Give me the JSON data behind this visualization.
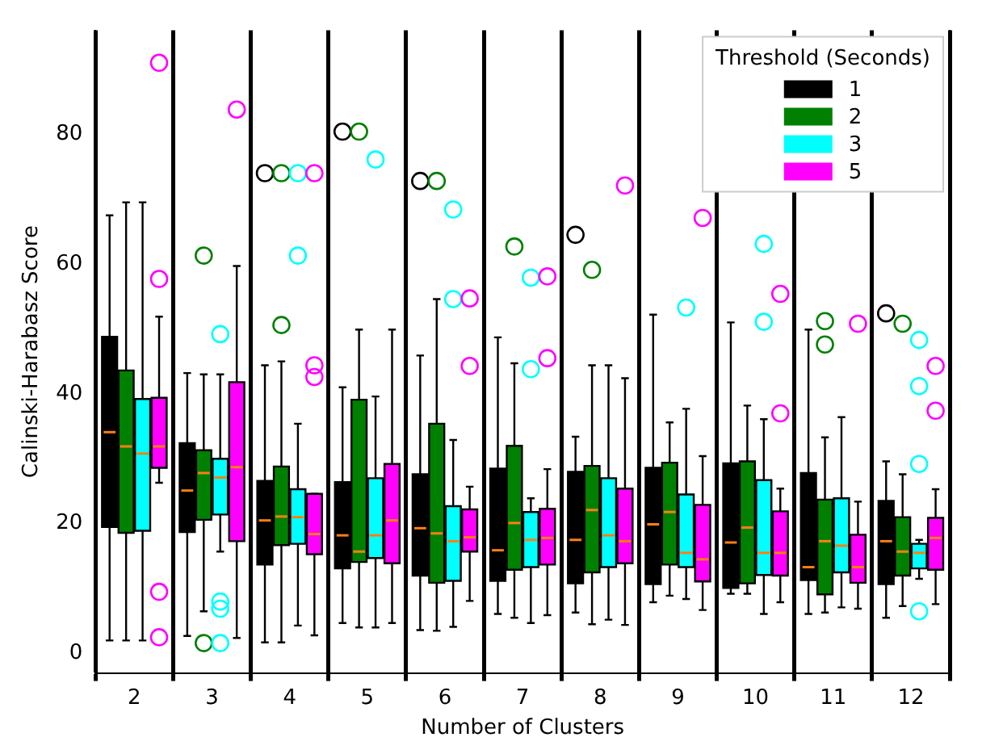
{
  "chart_data": {
    "type": "box",
    "xlabel": "Number of Clusters",
    "ylabel": "Calinski-Harabasz Score",
    "legend_title": "Threshold (Seconds)",
    "legend": "top right",
    "grid": "x",
    "categories": [
      "2",
      "3",
      "4",
      "5",
      "6",
      "7",
      "8",
      "9",
      "10",
      "11",
      "12"
    ],
    "ylim": [
      -3,
      96
    ],
    "yticks": [
      0,
      20,
      40,
      60,
      80
    ],
    "series": [
      {
        "name": "1",
        "color": "#000000",
        "boxes": [
          {
            "low": 2,
            "q1": 19.5,
            "median": 34.1,
            "q3": 48.8,
            "high": 67.5
          },
          {
            "low": 2.7,
            "q1": 18.7,
            "median": 25.1,
            "q3": 32.4,
            "high": 43.2
          },
          {
            "low": 1.7,
            "q1": 13.7,
            "median": 20.5,
            "q3": 26.6,
            "high": 44.4,
            "outliers": [
              74
            ]
          },
          {
            "low": 4.7,
            "q1": 13.1,
            "median": 18.2,
            "q3": 26.4,
            "high": 41,
            "outliers": [
              80.4
            ]
          },
          {
            "low": 3.6,
            "q1": 12,
            "median": 19.3,
            "q3": 27.6,
            "high": 45.9,
            "outliers": [
              72.8
            ]
          },
          {
            "low": 6.1,
            "q1": 11.2,
            "median": 15.9,
            "q3": 28.5,
            "high": 48.7
          },
          {
            "low": 6.3,
            "q1": 10.8,
            "median": 17.5,
            "q3": 28,
            "high": 33.4,
            "outliers": [
              64.5
            ]
          },
          {
            "low": 7.9,
            "q1": 10.7,
            "median": 19.9,
            "q3": 28.6,
            "high": 52.2
          },
          {
            "low": 9.2,
            "q1": 10.1,
            "median": 17.1,
            "q3": 29.3,
            "high": 51
          },
          {
            "low": 6.1,
            "q1": 11.3,
            "median": 13.3,
            "q3": 27.8,
            "high": 49.9
          },
          {
            "low": 5.5,
            "q1": 10.7,
            "median": 17.3,
            "q3": 23.5,
            "high": 29.6,
            "outliers": [
              52.4
            ]
          }
        ]
      },
      {
        "name": "2",
        "color": "#008000",
        "boxes": [
          {
            "low": 2,
            "q1": 18.6,
            "median": 31.9,
            "q3": 43.6,
            "high": 69.5
          },
          {
            "low": 6.5,
            "q1": 20.6,
            "median": 27.8,
            "q3": 31.3,
            "high": 43,
            "outliers": [
              61.3,
              1.6
            ]
          },
          {
            "low": 1.7,
            "q1": 16.7,
            "median": 21.1,
            "q3": 28.8,
            "high": 45,
            "outliers": [
              74,
              50.6
            ]
          },
          {
            "low": 4,
            "q1": 14.1,
            "median": 15.7,
            "q3": 39.1,
            "high": 49.9,
            "outliers": [
              80.4
            ]
          },
          {
            "low": 3.5,
            "q1": 10.9,
            "median": 18.5,
            "q3": 35.4,
            "high": 54.6,
            "outliers": [
              72.8
            ]
          },
          {
            "low": 5.5,
            "q1": 12.9,
            "median": 20.1,
            "q3": 32,
            "high": 44.7,
            "outliers": [
              62.7
            ]
          },
          {
            "low": 4.5,
            "q1": 12.5,
            "median": 22.1,
            "q3": 28.9,
            "high": 44.4,
            "outliers": [
              59.1
            ]
          },
          {
            "low": 8.9,
            "q1": 13.7,
            "median": 21.8,
            "q3": 29.4,
            "high": 35.6
          },
          {
            "low": 9.2,
            "q1": 10.8,
            "median": 19.4,
            "q3": 29.6,
            "high": 38.2
          },
          {
            "low": 6.3,
            "q1": 9.1,
            "median": 17.3,
            "q3": 23.7,
            "high": 33.3,
            "outliers": [
              51.2,
              47.6
            ]
          },
          {
            "low": 7.3,
            "q1": 12,
            "median": 15.7,
            "q3": 21,
            "high": 27.6,
            "outliers": [
              50.8
            ]
          }
        ]
      },
      {
        "name": "3",
        "color": "#00ffff",
        "boxes": [
          {
            "low": 2,
            "q1": 18.9,
            "median": 30.8,
            "q3": 39.2,
            "high": 69.5
          },
          {
            "low": 15.7,
            "q1": 21.4,
            "median": 27.1,
            "q3": 30,
            "high": 43,
            "outliers": [
              49.2,
              8,
              6.9,
              1.6
            ]
          },
          {
            "low": 4.3,
            "q1": 16.9,
            "median": 21,
            "q3": 25.3,
            "high": 35.4,
            "outliers": [
              74,
              61.3
            ]
          },
          {
            "low": 4,
            "q1": 14.7,
            "median": 18.2,
            "q3": 27,
            "high": 39.6,
            "outliers": [
              76.1
            ]
          },
          {
            "low": 4.1,
            "q1": 11.2,
            "median": 17.3,
            "q3": 22.7,
            "high": 32.9,
            "outliers": [
              68.4,
              54.6
            ]
          },
          {
            "low": 4.7,
            "q1": 13.3,
            "median": 17.5,
            "q3": 21.8,
            "high": 23.9,
            "outliers": [
              57.9,
              43.8
            ]
          },
          {
            "low": 5.2,
            "q1": 13.3,
            "median": 18.2,
            "q3": 27,
            "high": 44.4
          },
          {
            "low": 8.4,
            "q1": 13.3,
            "median": 15.5,
            "q3": 24.5,
            "high": 37.7,
            "outliers": [
              53.3
            ]
          },
          {
            "low": 6.1,
            "q1": 12.1,
            "median": 15.5,
            "q3": 26.7,
            "high": 36.1,
            "outliers": [
              63.1,
              51.1
            ]
          },
          {
            "low": 7.1,
            "q1": 12.5,
            "median": 16.6,
            "q3": 23.9,
            "high": 36.4
          },
          {
            "low": 11.5,
            "q1": 13.1,
            "median": 15.5,
            "q3": 16.9,
            "high": 17.5,
            "outliers": [
              48.3,
              41.2,
              29.2,
              6.5
            ]
          }
        ]
      },
      {
        "name": "5",
        "color": "#ff00ff",
        "boxes": [
          {
            "low": 26.3,
            "q1": 28.6,
            "median": 31.9,
            "q3": 39.4,
            "high": 51.9,
            "outliers": [
              91,
              57.7,
              9.5,
              2.5
            ]
          },
          {
            "low": 2.4,
            "q1": 17.3,
            "median": 28.7,
            "q3": 41.8,
            "high": 59.7,
            "outliers": [
              83.8
            ]
          },
          {
            "low": 2.8,
            "q1": 15.3,
            "median": 18.4,
            "q3": 24.6,
            "high": 24.6,
            "outliers": [
              74,
              44.4,
              42.6
            ]
          },
          {
            "low": 4.7,
            "q1": 13.9,
            "median": 20.5,
            "q3": 29.2,
            "high": 49.9
          },
          {
            "low": 8.1,
            "q1": 15.7,
            "median": 17.9,
            "q3": 22.2,
            "high": 25.7,
            "outliers": [
              54.7,
              44.3
            ]
          },
          {
            "low": 5.9,
            "q1": 13.7,
            "median": 17.8,
            "q3": 22.3,
            "high": 28.4,
            "outliers": [
              58.1,
              45.5
            ]
          },
          {
            "low": 4.4,
            "q1": 13.9,
            "median": 17.3,
            "q3": 25.4,
            "high": 42.4,
            "outliers": [
              72.1
            ]
          },
          {
            "low": 6.7,
            "q1": 11.1,
            "median": 14.5,
            "q3": 22.9,
            "high": 30.4,
            "outliers": [
              67.1
            ]
          },
          {
            "low": 7.9,
            "q1": 12,
            "median": 15.5,
            "q3": 21.9,
            "high": 25.4,
            "outliers": [
              55.4,
              37
            ]
          },
          {
            "low": 6.9,
            "q1": 10.9,
            "median": 13.3,
            "q3": 18.3,
            "high": 23.4,
            "outliers": [
              50.8
            ]
          },
          {
            "low": 7.6,
            "q1": 12.9,
            "median": 17.8,
            "q3": 20.9,
            "high": 25.3,
            "outliers": [
              44.3,
              37.4
            ]
          }
        ]
      }
    ]
  }
}
